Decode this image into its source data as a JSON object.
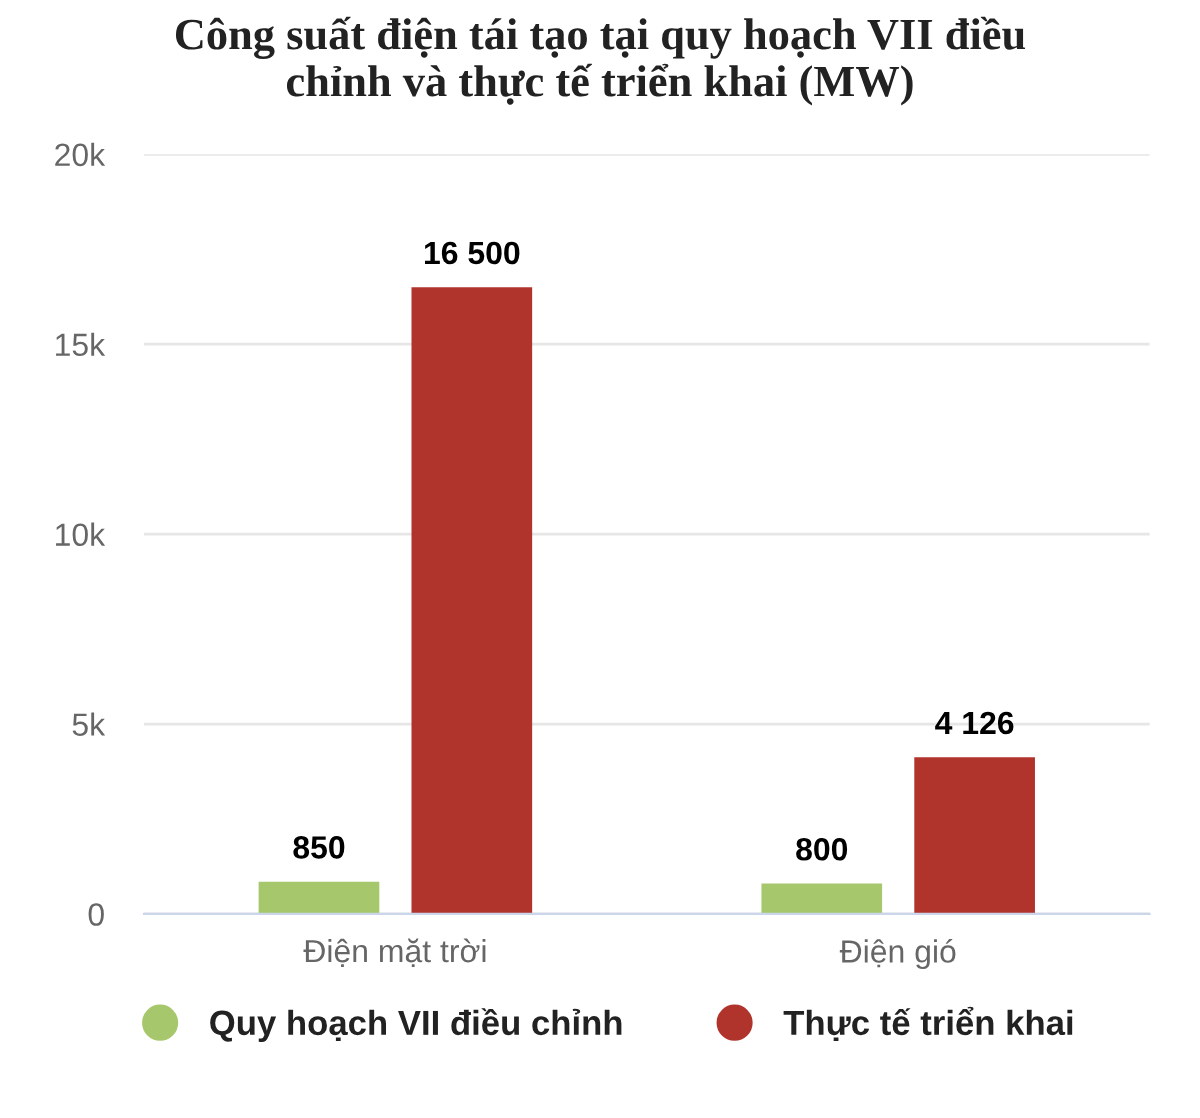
{
  "chart_data": {
    "type": "bar",
    "title": "Công suất điện tái tạo tại quy hoạch VII điều chỉnh và thực tế triển khai (MW)",
    "categories": [
      "Điện mặt trời",
      "Điện gió"
    ],
    "series": [
      {
        "name": "Quy hoạch VII điều chỉnh",
        "color": "#a6c76c",
        "values": [
          850,
          800
        ],
        "value_labels": [
          "850",
          "800"
        ]
      },
      {
        "name": "Thực tế triển khai",
        "color": "#b0332c",
        "values": [
          16500,
          4126
        ],
        "value_labels": [
          "16 500",
          "4 126"
        ]
      }
    ],
    "ylim": [
      0,
      20000
    ],
    "yticks": [
      0,
      {
        "value": 5000,
        "label": "5k"
      },
      {
        "value": 10000,
        "label": "10k"
      },
      {
        "value": 15000,
        "label": "15k"
      },
      {
        "value": 20000,
        "label": "20k"
      }
    ],
    "grid": "y",
    "legend": "bottom",
    "marker": "circle"
  }
}
